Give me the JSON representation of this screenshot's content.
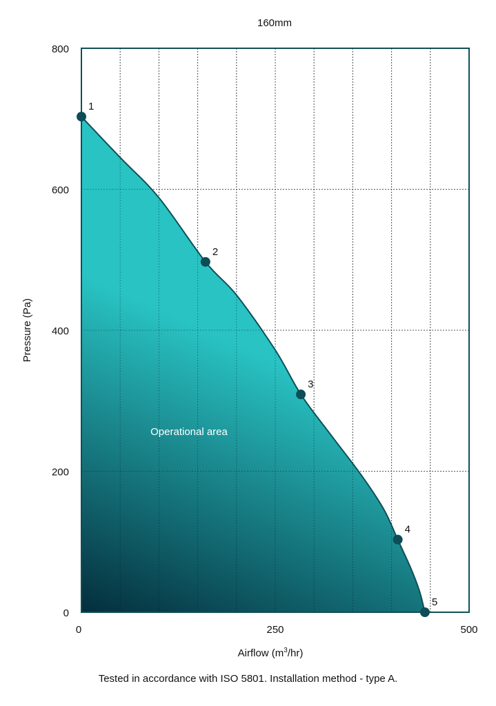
{
  "chart_data": {
    "type": "area",
    "title": "160mm",
    "xlabel_prefix": "Airflow (m",
    "xlabel_sup": "3",
    "xlabel_suffix": "/hr)",
    "ylabel": "Pressure (Pa)",
    "xlim": [
      0,
      500
    ],
    "ylim": [
      0,
      800
    ],
    "x_ticks": [
      0,
      250,
      500
    ],
    "y_ticks": [
      0,
      200,
      400,
      600,
      800
    ],
    "x_grid": [
      50,
      100,
      150,
      200,
      250,
      300,
      350,
      400,
      450
    ],
    "y_grid": [
      200,
      400,
      600
    ],
    "grid": true,
    "area_label": "Operational area",
    "curve": [
      [
        0,
        703
      ],
      [
        50,
        645
      ],
      [
        100,
        588
      ],
      [
        160,
        497
      ],
      [
        200,
        450
      ],
      [
        250,
        372
      ],
      [
        283,
        309
      ],
      [
        320,
        254
      ],
      [
        360,
        196
      ],
      [
        390,
        146
      ],
      [
        408,
        103
      ],
      [
        425,
        62
      ],
      [
        436,
        30
      ],
      [
        443,
        0
      ]
    ],
    "points": [
      {
        "label": "1",
        "x": 0,
        "y": 703
      },
      {
        "label": "2",
        "x": 160,
        "y": 497
      },
      {
        "label": "3",
        "x": 283,
        "y": 309
      },
      {
        "label": "4",
        "x": 408,
        "y": 103
      },
      {
        "label": "5",
        "x": 443,
        "y": 0
      }
    ],
    "colors": {
      "frame": "#0f4f57",
      "area_top": "#29c3c3",
      "area_bottom": "#042e3c",
      "marker": "#0c4d57"
    }
  },
  "footnote": "Tested in accordance with ISO 5801. Installation method - type A."
}
